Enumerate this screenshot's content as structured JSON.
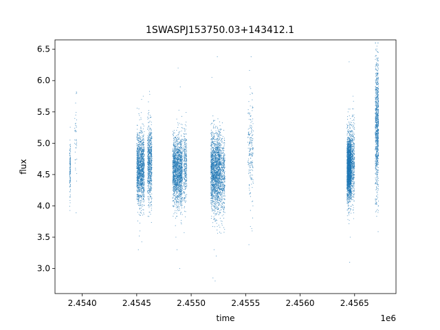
{
  "chart_data": {
    "type": "scatter",
    "title": "1SWASPJ153750.03+143412.1",
    "xlabel": "time",
    "ylabel": "flux",
    "x_offset_label": "1e6",
    "xlim": [
      2453750,
      2456880
    ],
    "ylim": [
      2.6,
      6.65
    ],
    "x_ticks": [
      2454000,
      2454500,
      2455000,
      2455500,
      2456000,
      2456500
    ],
    "x_tick_labels": [
      "2.4540",
      "2.4545",
      "2.4550",
      "2.4555",
      "2.4560",
      "2.4565"
    ],
    "y_ticks": [
      3.0,
      3.5,
      4.0,
      4.5,
      5.0,
      5.5,
      6.0,
      6.5
    ],
    "y_tick_labels": [
      "3.0",
      "3.5",
      "4.0",
      "4.5",
      "5.0",
      "5.5",
      "6.0",
      "6.5"
    ],
    "grid": false,
    "point_color": "#1f77b4",
    "clusters": [
      {
        "x_range": [
          2453885,
          2453893
        ],
        "y_center": 4.6,
        "y_spread": 0.22,
        "count": 120,
        "outliers": [
          [
            2453888,
            5.05
          ],
          [
            2453889,
            4.05
          ]
        ]
      },
      {
        "x_range": [
          2453930,
          2453950
        ],
        "y_center": 5.1,
        "y_spread": 0.3,
        "count": 40,
        "outliers": [
          [
            2453940,
            5.45
          ],
          [
            2453938,
            4.6
          ]
        ]
      },
      {
        "x_range": [
          2454500,
          2454570
        ],
        "y_center": 4.6,
        "y_spread": 0.28,
        "count": 1400,
        "outliers": [
          [
            2454515,
            3.3
          ],
          [
            2454530,
            3.6
          ],
          [
            2454545,
            5.7
          ],
          [
            2454560,
            5.75
          ],
          [
            2454520,
            5.55
          ]
        ]
      },
      {
        "x_range": [
          2454600,
          2454640
        ],
        "y_center": 4.7,
        "y_spread": 0.3,
        "count": 700,
        "outliers": [
          [
            2454620,
            5.78
          ],
          [
            2454615,
            3.9
          ]
        ]
      },
      {
        "x_range": [
          2454830,
          2454920
        ],
        "y_center": 4.55,
        "y_spread": 0.27,
        "count": 1700,
        "outliers": [
          [
            2454880,
            6.2
          ],
          [
            2454895,
            3.0
          ],
          [
            2454870,
            3.3
          ],
          [
            2454900,
            5.9
          ],
          [
            2454860,
            3.5
          ]
        ]
      },
      {
        "x_range": [
          2454930,
          2454960
        ],
        "y_center": 4.6,
        "y_spread": 0.3,
        "count": 300,
        "outliers": []
      },
      {
        "x_range": [
          2455180,
          2455270
        ],
        "y_center": 4.55,
        "y_spread": 0.3,
        "count": 1800,
        "outliers": [
          [
            2455200,
            2.85
          ],
          [
            2455220,
            2.8
          ],
          [
            2455240,
            6.38
          ],
          [
            2455190,
            6.05
          ],
          [
            2455210,
            3.3
          ],
          [
            2455230,
            3.2
          ]
        ]
      },
      {
        "x_range": [
          2455270,
          2455310
        ],
        "y_center": 4.5,
        "y_spread": 0.3,
        "count": 400,
        "outliers": [
          [
            2455300,
            3.9
          ]
        ]
      },
      {
        "x_range": [
          2455520,
          2455570
        ],
        "y_center": 4.9,
        "y_spread": 0.45,
        "count": 200,
        "outliers": [
          [
            2455550,
            6.38
          ],
          [
            2455540,
            5.9
          ],
          [
            2455530,
            3.38
          ],
          [
            2455560,
            3.6
          ]
        ]
      },
      {
        "x_range": [
          2456430,
          2456470
        ],
        "y_center": 4.6,
        "y_spread": 0.25,
        "count": 2200,
        "outliers": [
          [
            2456450,
            6.3
          ],
          [
            2456455,
            3.1
          ],
          [
            2456440,
            5.5
          ],
          [
            2456460,
            3.5
          ]
        ]
      },
      {
        "x_range": [
          2456470,
          2456500
        ],
        "y_center": 4.7,
        "y_spread": 0.3,
        "count": 400,
        "outliers": [
          [
            2456485,
            5.75
          ]
        ]
      },
      {
        "x_range": [
          2456690,
          2456720
        ],
        "y_center": 5.3,
        "y_spread": 0.55,
        "count": 900,
        "outliers": [
          [
            2456705,
            6.55
          ],
          [
            2456700,
            4.3
          ]
        ]
      }
    ]
  }
}
